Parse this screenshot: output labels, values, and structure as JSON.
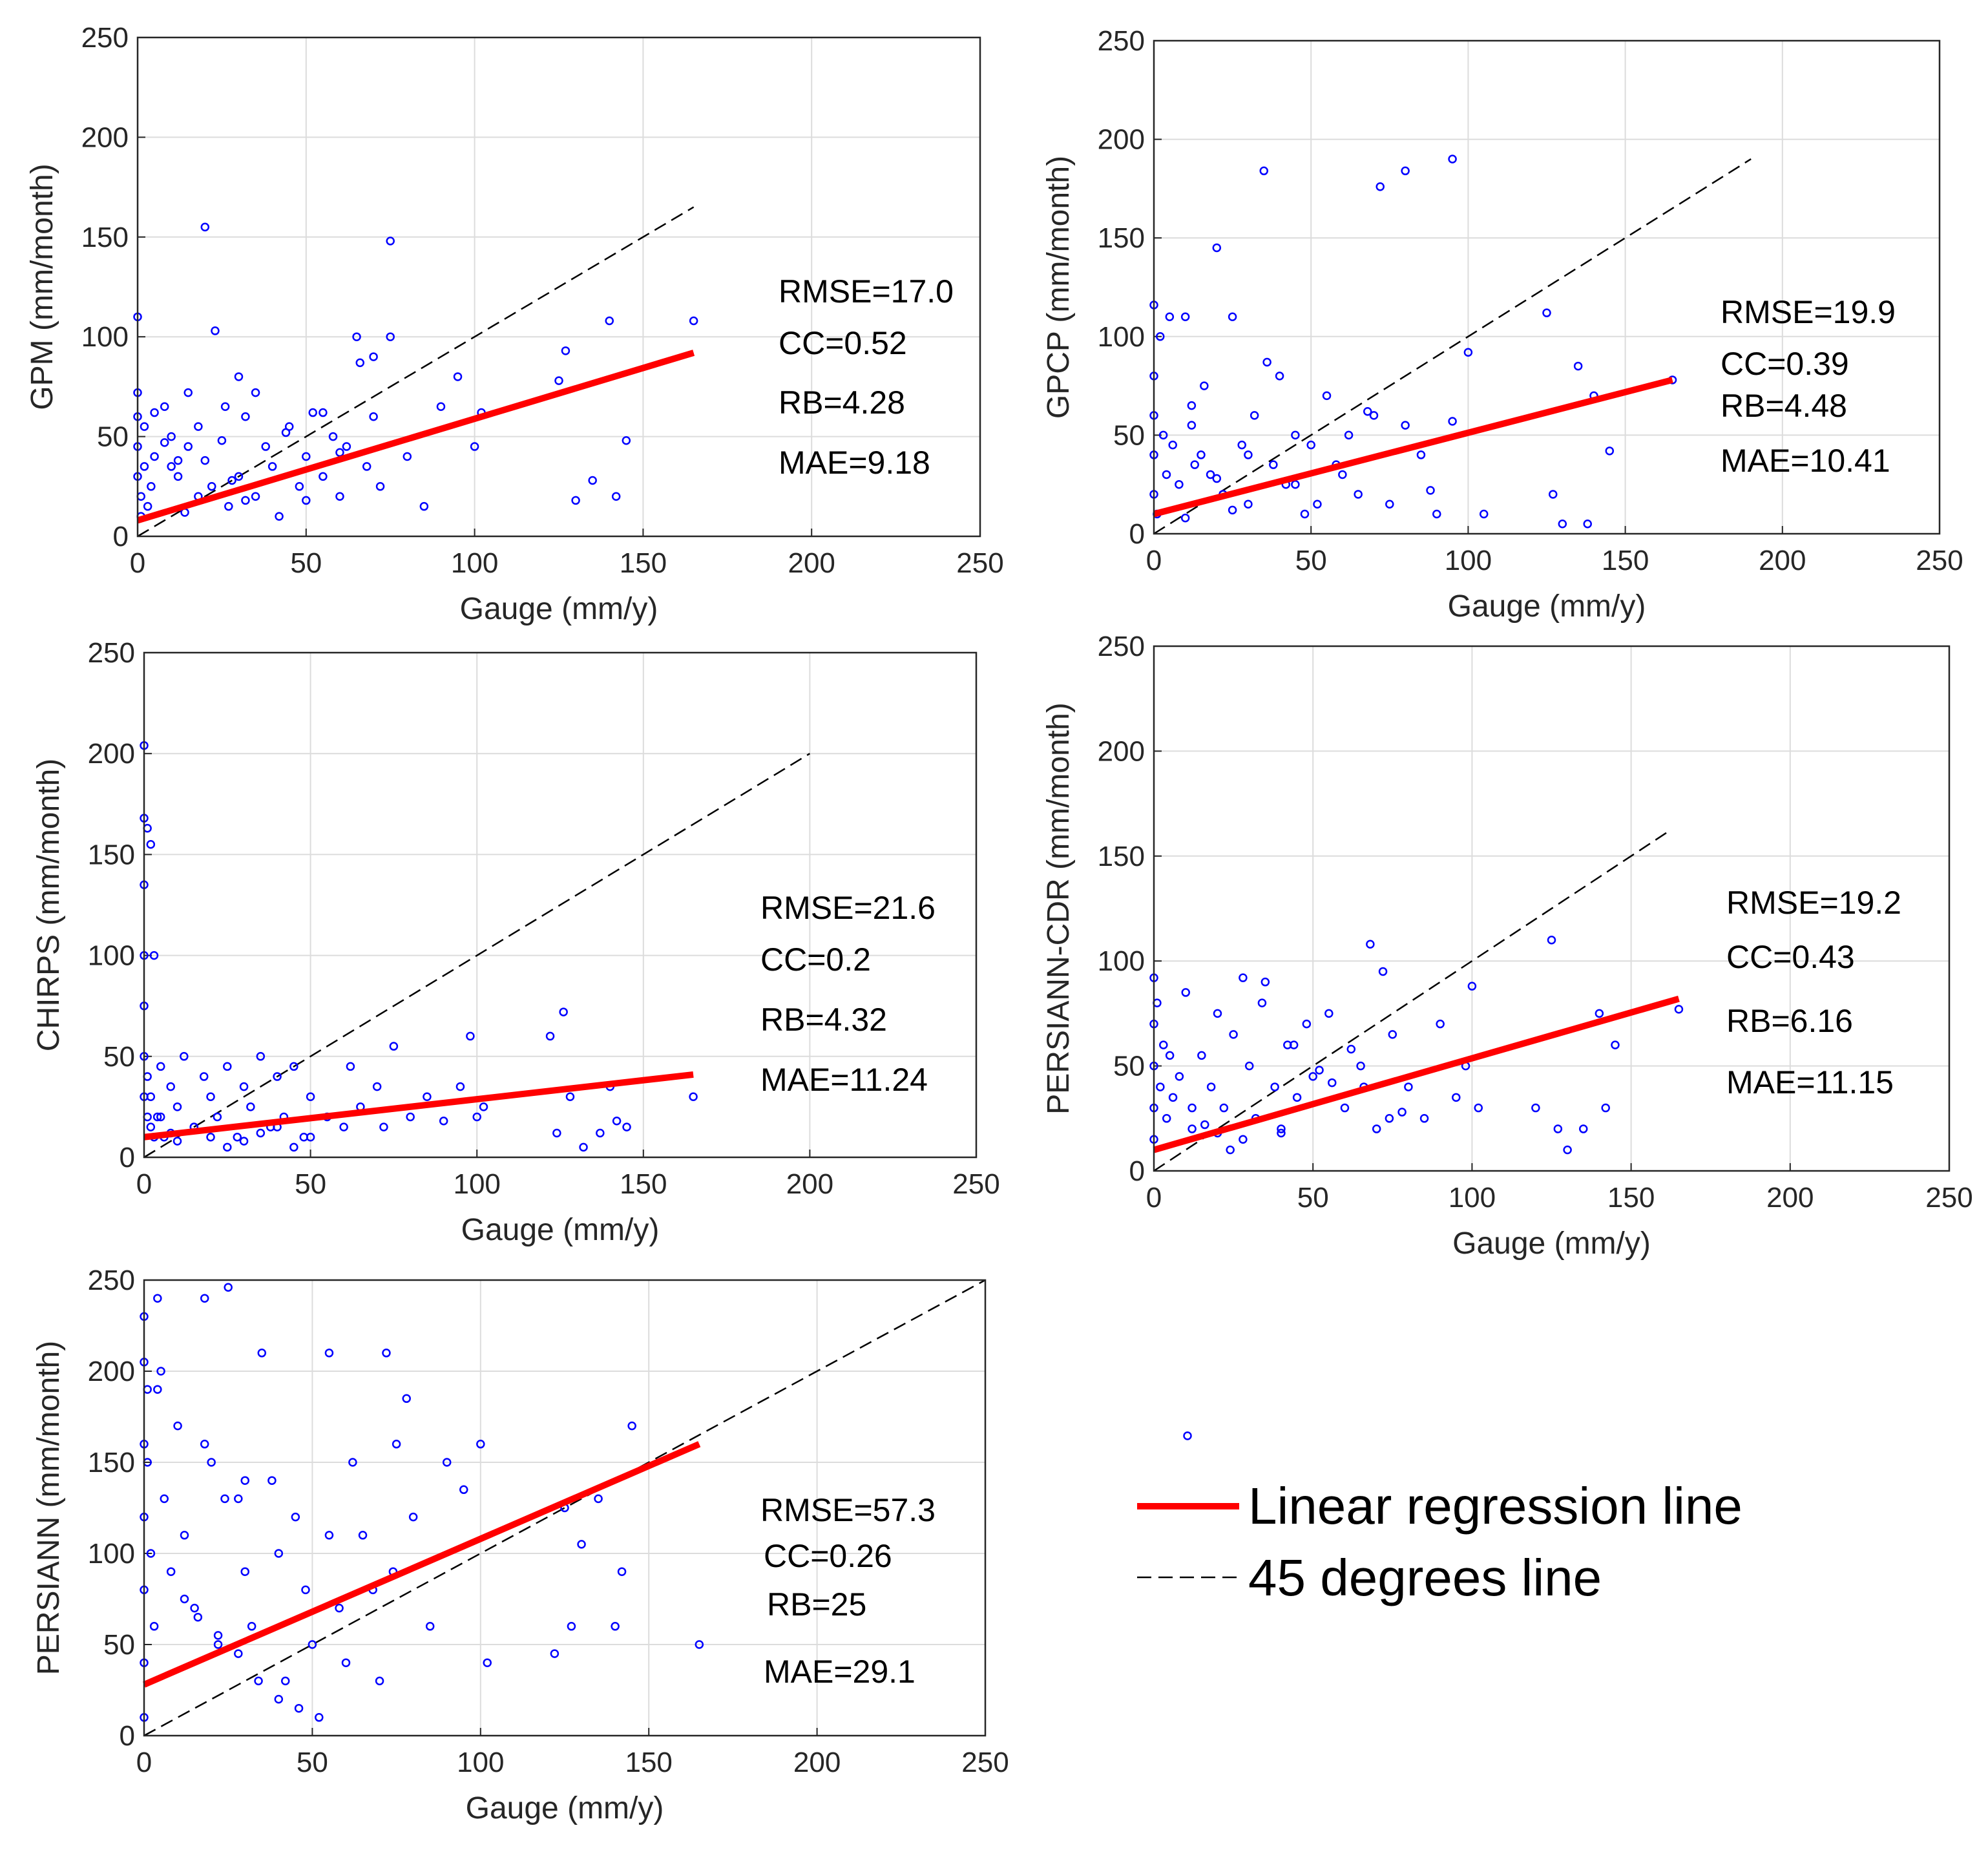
{
  "colors": {
    "points": "#0000ff",
    "regression": "#ff0000",
    "reference": "#000000",
    "grid": "#dcdcdc",
    "axes": "#262626"
  },
  "legend": {
    "placement": "bottom-right",
    "regression_label": "Linear regression line",
    "reference_label": "45 degrees line"
  },
  "chart_data": [
    {
      "type": "scatter",
      "xlabel": "Gauge (mm/y)",
      "ylabel": "GPM (mm/month)",
      "xlim": [
        0,
        250
      ],
      "ylim": [
        0,
        250
      ],
      "xticks": [
        "0",
        "50",
        "100",
        "150",
        "200",
        "250"
      ],
      "yticks": [
        "0",
        "50",
        "100",
        "150",
        "200",
        "250"
      ],
      "grid": true,
      "stats": [
        "RMSE=17.0",
        "CC=0.52",
        "RB=4.28",
        "MAE=9.18"
      ],
      "regression": {
        "x": [
          0,
          165
        ],
        "y": [
          8,
          92
        ]
      },
      "reference": {
        "x": [
          0,
          165
        ],
        "y": [
          0,
          165
        ]
      },
      "points": {
        "x": [
          0,
          0,
          0,
          0,
          0,
          1,
          1,
          2,
          3,
          2,
          5,
          4,
          8,
          10,
          12,
          15,
          18,
          20,
          22,
          25,
          27,
          30,
          32,
          35,
          38,
          40,
          42,
          45,
          48,
          50,
          52,
          55,
          58,
          60,
          62,
          65,
          68,
          70,
          72,
          75,
          80,
          85,
          90,
          95,
          100,
          102,
          125,
          127,
          130,
          135,
          140,
          142,
          145,
          165,
          20,
          23,
          75,
          66,
          70,
          30,
          35,
          5,
          8,
          12,
          15,
          18,
          10,
          14,
          28,
          32,
          26,
          44,
          50,
          55,
          60
        ],
        "y": [
          110,
          72,
          60,
          45,
          30,
          20,
          10,
          35,
          15,
          55,
          40,
          25,
          65,
          50,
          30,
          45,
          20,
          38,
          25,
          48,
          15,
          30,
          60,
          20,
          45,
          35,
          10,
          55,
          25,
          40,
          62,
          30,
          50,
          20,
          45,
          100,
          35,
          60,
          25,
          148,
          40,
          15,
          65,
          80,
          45,
          62,
          78,
          93,
          18,
          28,
          108,
          20,
          48,
          108,
          155,
          103,
          100,
          87,
          90,
          80,
          72,
          62,
          47,
          38,
          72,
          55,
          35,
          12,
          28,
          18,
          65,
          52,
          18,
          62,
          42
        ]
      }
    },
    {
      "type": "scatter",
      "xlabel": "Gauge (mm/y)",
      "ylabel": "GPCP (mm/month)",
      "xlim": [
        0,
        250
      ],
      "ylim": [
        0,
        250
      ],
      "xticks": [
        "0",
        "50",
        "100",
        "150",
        "200",
        "250"
      ],
      "yticks": [
        "0",
        "50",
        "100",
        "150",
        "200",
        "250"
      ],
      "grid": true,
      "stats": [
        "RMSE=19.9",
        "CC=0.39",
        "RB=4.48",
        "MAE=10.41"
      ],
      "regression": {
        "x": [
          0,
          165
        ],
        "y": [
          10,
          78
        ]
      },
      "reference": {
        "x": [
          0,
          190
        ],
        "y": [
          0,
          190
        ]
      },
      "points": {
        "x": [
          0,
          0,
          0,
          0,
          0,
          1,
          2,
          3,
          4,
          5,
          6,
          8,
          10,
          12,
          15,
          18,
          20,
          22,
          25,
          28,
          30,
          32,
          35,
          38,
          40,
          42,
          45,
          48,
          50,
          55,
          60,
          65,
          70,
          75,
          80,
          85,
          90,
          95,
          100,
          105,
          125,
          127,
          130,
          135,
          138,
          140,
          145,
          165,
          20,
          36,
          72,
          80,
          95,
          13,
          16,
          25,
          10,
          12,
          30,
          45,
          52,
          58,
          62,
          68,
          88
        ],
        "y": [
          116,
          80,
          60,
          40,
          20,
          10,
          100,
          50,
          30,
          110,
          45,
          25,
          110,
          65,
          40,
          30,
          145,
          20,
          110,
          45,
          15,
          60,
          184,
          35,
          80,
          25,
          50,
          10,
          45,
          70,
          30,
          20,
          60,
          15,
          184,
          40,
          10,
          190,
          92,
          10,
          112,
          20,
          5,
          85,
          5,
          70,
          42,
          78,
          28,
          87,
          176,
          55,
          57,
          35,
          75,
          12,
          8,
          55,
          40,
          25,
          15,
          35,
          50,
          62,
          22
        ]
      }
    },
    {
      "type": "scatter",
      "xlabel": "Gauge (mm/y)",
      "ylabel": "CHIRPS (mm/month)",
      "xlim": [
        0,
        250
      ],
      "ylim": [
        0,
        250
      ],
      "xticks": [
        "0",
        "50",
        "100",
        "150",
        "200",
        "250"
      ],
      "yticks": [
        "0",
        "50",
        "100",
        "150",
        "200",
        "250"
      ],
      "grid": true,
      "stats": [
        "RMSE=21.6",
        "CC=0.2",
        "RB=4.32",
        "MAE=11.24"
      ],
      "regression": {
        "x": [
          0,
          165
        ],
        "y": [
          10,
          41
        ]
      },
      "reference": {
        "x": [
          0,
          200
        ],
        "y": [
          0,
          200
        ]
      },
      "points": {
        "x": [
          0,
          0,
          0,
          0,
          0,
          0,
          1,
          1,
          2,
          2,
          3,
          4,
          5,
          6,
          8,
          10,
          12,
          15,
          18,
          20,
          22,
          25,
          28,
          30,
          32,
          35,
          38,
          40,
          42,
          45,
          48,
          50,
          55,
          60,
          62,
          65,
          70,
          72,
          75,
          80,
          85,
          90,
          95,
          98,
          100,
          102,
          122,
          124,
          126,
          128,
          132,
          137,
          140,
          142,
          145,
          165,
          0,
          1,
          2,
          3,
          5,
          8,
          10,
          15,
          20,
          25,
          30,
          35,
          40,
          45,
          50
        ],
        "y": [
          204,
          168,
          135,
          100,
          75,
          50,
          163,
          40,
          155,
          30,
          100,
          20,
          45,
          10,
          35,
          25,
          50,
          15,
          40,
          30,
          20,
          45,
          10,
          35,
          25,
          50,
          15,
          40,
          20,
          45,
          10,
          30,
          20,
          15,
          45,
          25,
          35,
          15,
          55,
          20,
          30,
          18,
          35,
          60,
          20,
          25,
          60,
          12,
          72,
          30,
          5,
          12,
          35,
          18,
          15,
          30,
          30,
          20,
          15,
          10,
          20,
          12,
          8,
          15,
          10,
          5,
          8,
          12,
          15,
          5,
          10
        ]
      }
    },
    {
      "type": "scatter",
      "xlabel": "Gauge (mm/y)",
      "ylabel": "PERSIANN-CDR (mm/month)",
      "xlim": [
        0,
        250
      ],
      "ylim": [
        0,
        250
      ],
      "xticks": [
        "0",
        "50",
        "100",
        "150",
        "200",
        "250"
      ],
      "yticks": [
        "0",
        "50",
        "100",
        "150",
        "200",
        "250"
      ],
      "grid": true,
      "stats": [
        "RMSE=19.2",
        "CC=0.43",
        "RB=6.16",
        "MAE=11.15"
      ],
      "regression": {
        "x": [
          0,
          165
        ],
        "y": [
          10,
          82
        ]
      },
      "reference": {
        "x": [
          0,
          162
        ],
        "y": [
          0,
          162
        ]
      },
      "points": {
        "x": [
          0,
          0,
          0,
          0,
          0,
          1,
          2,
          3,
          4,
          5,
          6,
          8,
          10,
          12,
          15,
          18,
          20,
          22,
          25,
          28,
          30,
          32,
          35,
          38,
          40,
          42,
          45,
          48,
          50,
          55,
          60,
          65,
          68,
          70,
          72,
          75,
          80,
          85,
          90,
          95,
          98,
          100,
          102,
          120,
          125,
          127,
          130,
          135,
          140,
          142,
          145,
          165,
          28,
          34,
          52,
          66,
          74,
          12,
          16,
          20,
          24,
          40,
          44,
          56,
          62,
          78
        ],
        "y": [
          92,
          70,
          50,
          30,
          15,
          80,
          40,
          60,
          25,
          55,
          35,
          45,
          85,
          20,
          55,
          40,
          75,
          30,
          65,
          15,
          50,
          25,
          90,
          40,
          20,
          60,
          35,
          70,
          45,
          75,
          30,
          50,
          108,
          20,
          95,
          65,
          40,
          25,
          70,
          35,
          50,
          88,
          30,
          30,
          110,
          20,
          10,
          20,
          75,
          30,
          60,
          77,
          92,
          80,
          48,
          40,
          25,
          30,
          22,
          18,
          10,
          18,
          60,
          42,
          58,
          28
        ]
      }
    },
    {
      "type": "scatter",
      "xlabel": "Gauge (mm/y)",
      "ylabel": "PERSIANN (mm/month)",
      "xlim": [
        0,
        250
      ],
      "ylim": [
        0,
        250
      ],
      "xticks": [
        "0",
        "50",
        "100",
        "150",
        "200",
        "250"
      ],
      "yticks": [
        "0",
        "50",
        "100",
        "150",
        "200",
        "250"
      ],
      "grid": true,
      "stats": [
        "RMSE=57.3",
        "CC=0.26",
        "RB=25",
        "MAE=29.1"
      ],
      "regression": {
        "x": [
          0,
          165
        ],
        "y": [
          28,
          160
        ]
      },
      "reference": {
        "x": [
          0,
          250
        ],
        "y": [
          0,
          250
        ]
      },
      "points": {
        "x": [
          0,
          0,
          0,
          0,
          0,
          0,
          0,
          1,
          1,
          2,
          3,
          4,
          5,
          6,
          8,
          10,
          12,
          15,
          18,
          20,
          22,
          25,
          28,
          30,
          32,
          35,
          38,
          40,
          42,
          45,
          48,
          50,
          52,
          55,
          58,
          60,
          62,
          65,
          68,
          70,
          72,
          75,
          78,
          80,
          85,
          90,
          95,
          100,
          102,
          122,
          125,
          127,
          130,
          135,
          140,
          142,
          145,
          165,
          4,
          18,
          24,
          30,
          55,
          74,
          12,
          16,
          22,
          28,
          34,
          40,
          46
        ],
        "y": [
          230,
          205,
          160,
          120,
          80,
          40,
          10,
          190,
          150,
          100,
          60,
          240,
          200,
          130,
          90,
          170,
          110,
          70,
          240,
          150,
          50,
          246,
          130,
          90,
          60,
          210,
          140,
          100,
          30,
          120,
          80,
          50,
          10,
          210,
          70,
          40,
          150,
          110,
          80,
          30,
          210,
          160,
          185,
          120,
          60,
          150,
          135,
          160,
          40,
          45,
          125,
          60,
          105,
          130,
          60,
          90,
          170,
          50,
          190,
          160,
          130,
          140,
          110,
          90,
          75,
          65,
          55,
          45,
          30,
          20,
          15
        ]
      }
    }
  ]
}
